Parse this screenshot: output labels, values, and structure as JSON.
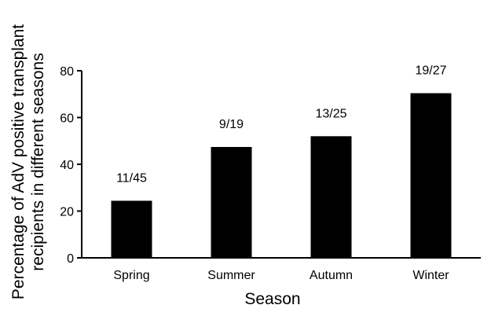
{
  "chart_data": {
    "type": "bar",
    "title": "",
    "xlabel": "Season",
    "ylabel_lines": [
      "Percentage of AdV positive transplant",
      "recipients in different seasons"
    ],
    "categories": [
      "Spring",
      "Summer",
      "Autumn",
      "Winter"
    ],
    "values": [
      24.4,
      47.4,
      52.0,
      70.4
    ],
    "data_labels": [
      "11/45",
      "9/19",
      "13/25",
      "19/27"
    ],
    "ylim": [
      0,
      80
    ],
    "yticks": [
      "0",
      "20",
      "40",
      "60",
      "80"
    ],
    "bar_color": "#000000",
    "grid": false,
    "legend": "none"
  }
}
